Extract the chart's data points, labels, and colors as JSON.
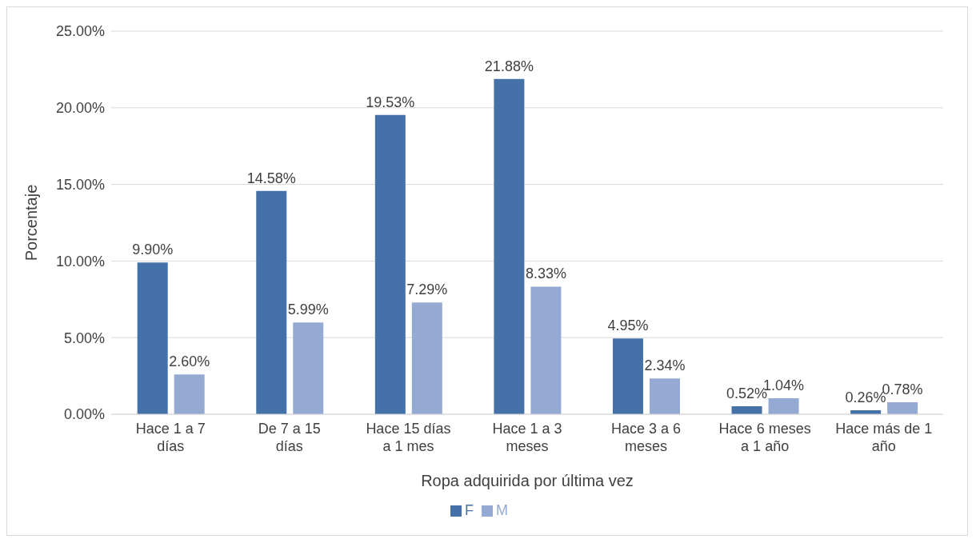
{
  "chart_data": {
    "type": "bar",
    "xlabel": "Ropa adquirida por última vez",
    "ylabel": "Porcentaje",
    "categories": [
      "Hace 1 a 7 días",
      "De 7 a 15 días",
      "Hace 15 días a 1 mes",
      "Hace 1 a 3 meses",
      "Hace 3 a 6 meses",
      "Hace 6 meses a 1 año",
      "Hace más de 1 año"
    ],
    "series": [
      {
        "name": "F",
        "color": "#4472a8",
        "values": [
          9.9,
          14.58,
          19.53,
          21.88,
          4.95,
          0.52,
          0.26
        ],
        "value_labels": [
          "9.90%",
          "14.58%",
          "19.53%",
          "21.88%",
          "4.95%",
          "0.52%",
          "0.26%"
        ]
      },
      {
        "name": "M",
        "color": "#95aad3",
        "values": [
          2.6,
          5.99,
          7.29,
          8.33,
          2.34,
          1.04,
          0.78
        ],
        "value_labels": [
          "2.60%",
          "5.99%",
          "7.29%",
          "8.33%",
          "2.34%",
          "1.04%",
          "0.78%"
        ]
      }
    ],
    "ylim": [
      0,
      25
    ],
    "yticks": [
      {
        "value": 0,
        "label": "0.00%"
      },
      {
        "value": 5,
        "label": "5.00%"
      },
      {
        "value": 10,
        "label": "10.00%"
      },
      {
        "value": 15,
        "label": "15.00%"
      },
      {
        "value": 20,
        "label": "20.00%"
      },
      {
        "value": 25,
        "label": "25.00%"
      }
    ],
    "grid": "y",
    "legend": "bottom"
  }
}
